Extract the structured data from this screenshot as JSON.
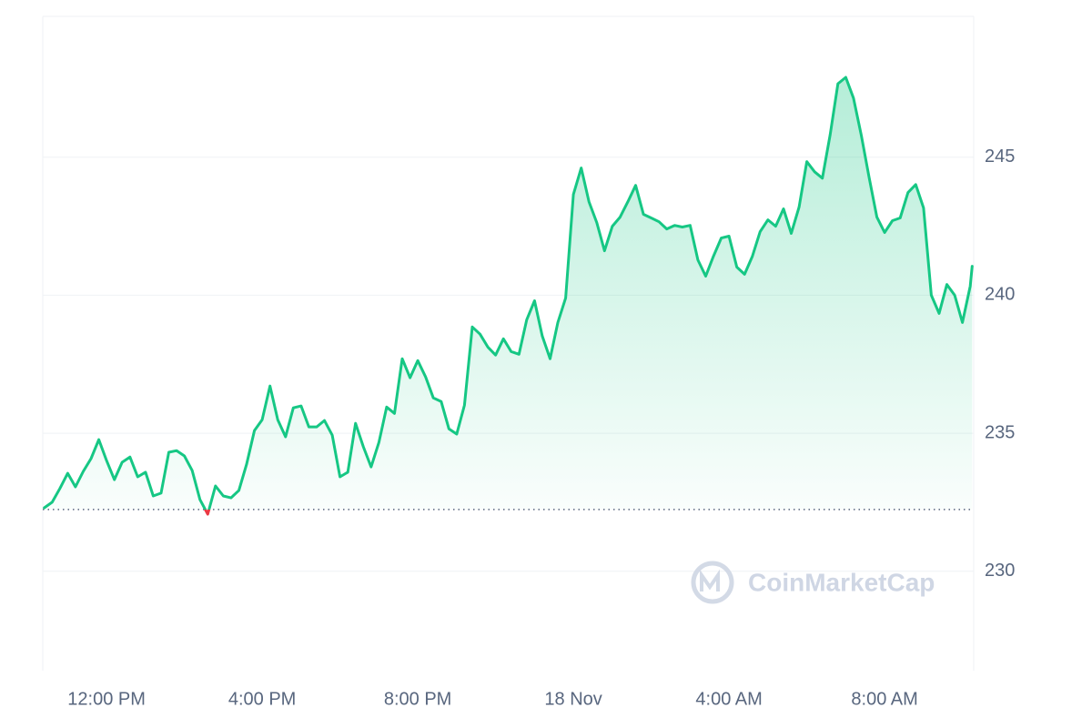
{
  "chart_data": {
    "type": "line",
    "watermark": "CoinMarketCap",
    "x": [
      10.4,
      10.6,
      10.8,
      11.0,
      11.2,
      11.4,
      11.6,
      11.8,
      12.0,
      12.2,
      12.4,
      12.6,
      12.8,
      13.0,
      13.2,
      13.4,
      13.6,
      13.8,
      14.0,
      14.2,
      14.4,
      14.6,
      14.8,
      15.0,
      15.2,
      15.4,
      15.6,
      15.8,
      16.0,
      16.2,
      16.4,
      16.6,
      16.8,
      17.0,
      17.2,
      17.4,
      17.6,
      17.8,
      18.0,
      18.2,
      18.4,
      18.6,
      18.8,
      19.0,
      19.2,
      19.4,
      19.6,
      19.8,
      20.0,
      20.2,
      20.4,
      20.6,
      20.8,
      21.0,
      21.2,
      21.4,
      21.6,
      21.8,
      22.0,
      22.2,
      22.4,
      22.6,
      22.8,
      23.0,
      23.2,
      23.4,
      23.6,
      23.8,
      24.0,
      24.2,
      24.4,
      24.6,
      24.8,
      25.0,
      25.2,
      25.4,
      25.6,
      25.8,
      26.0,
      26.2,
      26.4,
      26.6,
      26.8,
      27.0,
      27.2,
      27.4,
      27.6,
      27.8,
      28.0,
      28.2,
      28.4,
      28.6,
      28.8,
      29.0,
      29.2,
      29.4,
      29.6,
      29.8,
      30.0,
      30.2,
      30.4,
      30.6,
      30.8,
      31.0,
      31.2,
      31.4,
      31.6,
      31.8,
      32.0,
      32.2,
      32.4,
      32.6,
      32.8,
      33.0,
      33.2,
      33.4,
      33.6,
      33.8,
      34.0,
      34.2,
      34.25
    ],
    "series": [
      {
        "color": "#16c784",
        "down_color": "#ea3943",
        "values": [
          232.3,
          232.5,
          233.0,
          233.55,
          233.06,
          233.62,
          234.08,
          234.77,
          234.01,
          233.32,
          233.95,
          234.14,
          233.42,
          233.59,
          232.73,
          232.83,
          234.31,
          234.37,
          234.18,
          233.65,
          232.6,
          232.07,
          233.09,
          232.73,
          232.66,
          232.93,
          233.88,
          235.1,
          235.49,
          236.71,
          235.49,
          234.87,
          235.92,
          235.99,
          235.23,
          235.23,
          235.46,
          234.93,
          233.42,
          233.59,
          235.36,
          234.51,
          233.78,
          234.67,
          235.95,
          235.72,
          237.7,
          237.01,
          237.63,
          237.04,
          236.28,
          236.15,
          235.16,
          234.97,
          236.02,
          238.85,
          238.59,
          238.12,
          237.83,
          238.42,
          237.96,
          237.86,
          239.11,
          239.8,
          238.52,
          237.7,
          239.01,
          239.9,
          243.65,
          244.61,
          243.39,
          242.63,
          241.61,
          242.5,
          242.83,
          243.39,
          243.98,
          242.93,
          242.8,
          242.66,
          242.4,
          242.53,
          242.47,
          242.53,
          241.28,
          240.69,
          241.41,
          242.07,
          242.14,
          241.02,
          240.76,
          241.41,
          242.3,
          242.73,
          242.5,
          243.13,
          242.24,
          243.19,
          244.84,
          244.47,
          244.24,
          245.82,
          247.66,
          247.89,
          247.14,
          245.79,
          244.28,
          242.83,
          242.27,
          242.7,
          242.8,
          243.72,
          244.01,
          243.16,
          240.0,
          239.34,
          240.39,
          240.0,
          239.01,
          240.33,
          241.05
        ]
      }
    ],
    "baseline": 232.24,
    "xlim": [
      10.36,
      34.29
    ],
    "ylim": [
      226.4,
      250.1
    ],
    "xticks": [
      {
        "value": 12,
        "label": "12:00 PM"
      },
      {
        "value": 16,
        "label": "4:00 PM"
      },
      {
        "value": 20,
        "label": "8:00 PM"
      },
      {
        "value": 24,
        "label": "18 Nov"
      },
      {
        "value": 28,
        "label": "4:00 AM"
      },
      {
        "value": 32,
        "label": "8:00 AM"
      }
    ],
    "yticks": [
      230,
      235,
      240,
      245
    ],
    "grid": true
  }
}
